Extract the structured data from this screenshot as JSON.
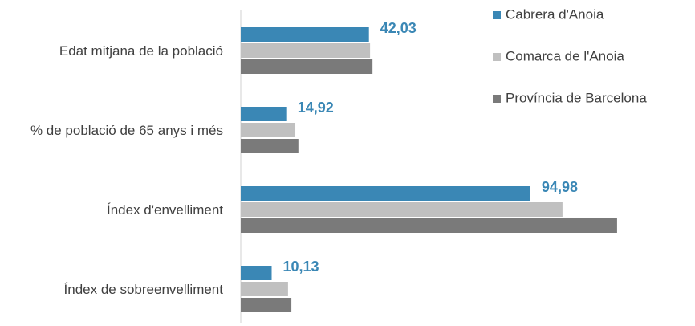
{
  "chart_data": {
    "type": "hbar",
    "categories": [
      "Edat mitjana de la població",
      "% de població de 65 anys i més",
      "Índex d'envelliment",
      "Índex de sobreenvelliment"
    ],
    "series": [
      {
        "name": "Cabrera d'Anoia",
        "color": "#3a87b5",
        "values": [
          42.03,
          14.92,
          94.98,
          10.13
        ],
        "value_labels": [
          "42,03",
          "14,92",
          "94,98",
          "10,13"
        ]
      },
      {
        "name": "Comarca de l'Anoia",
        "color": "#c0c0c0",
        "values": [
          42.4,
          17.9,
          105.5,
          15.5
        ]
      },
      {
        "name": "Província de Barcelona",
        "color": "#7a7a7a",
        "values": [
          43.2,
          18.9,
          123.4,
          16.6
        ]
      }
    ],
    "xlim": [
      0,
      140
    ],
    "legend": "right"
  }
}
